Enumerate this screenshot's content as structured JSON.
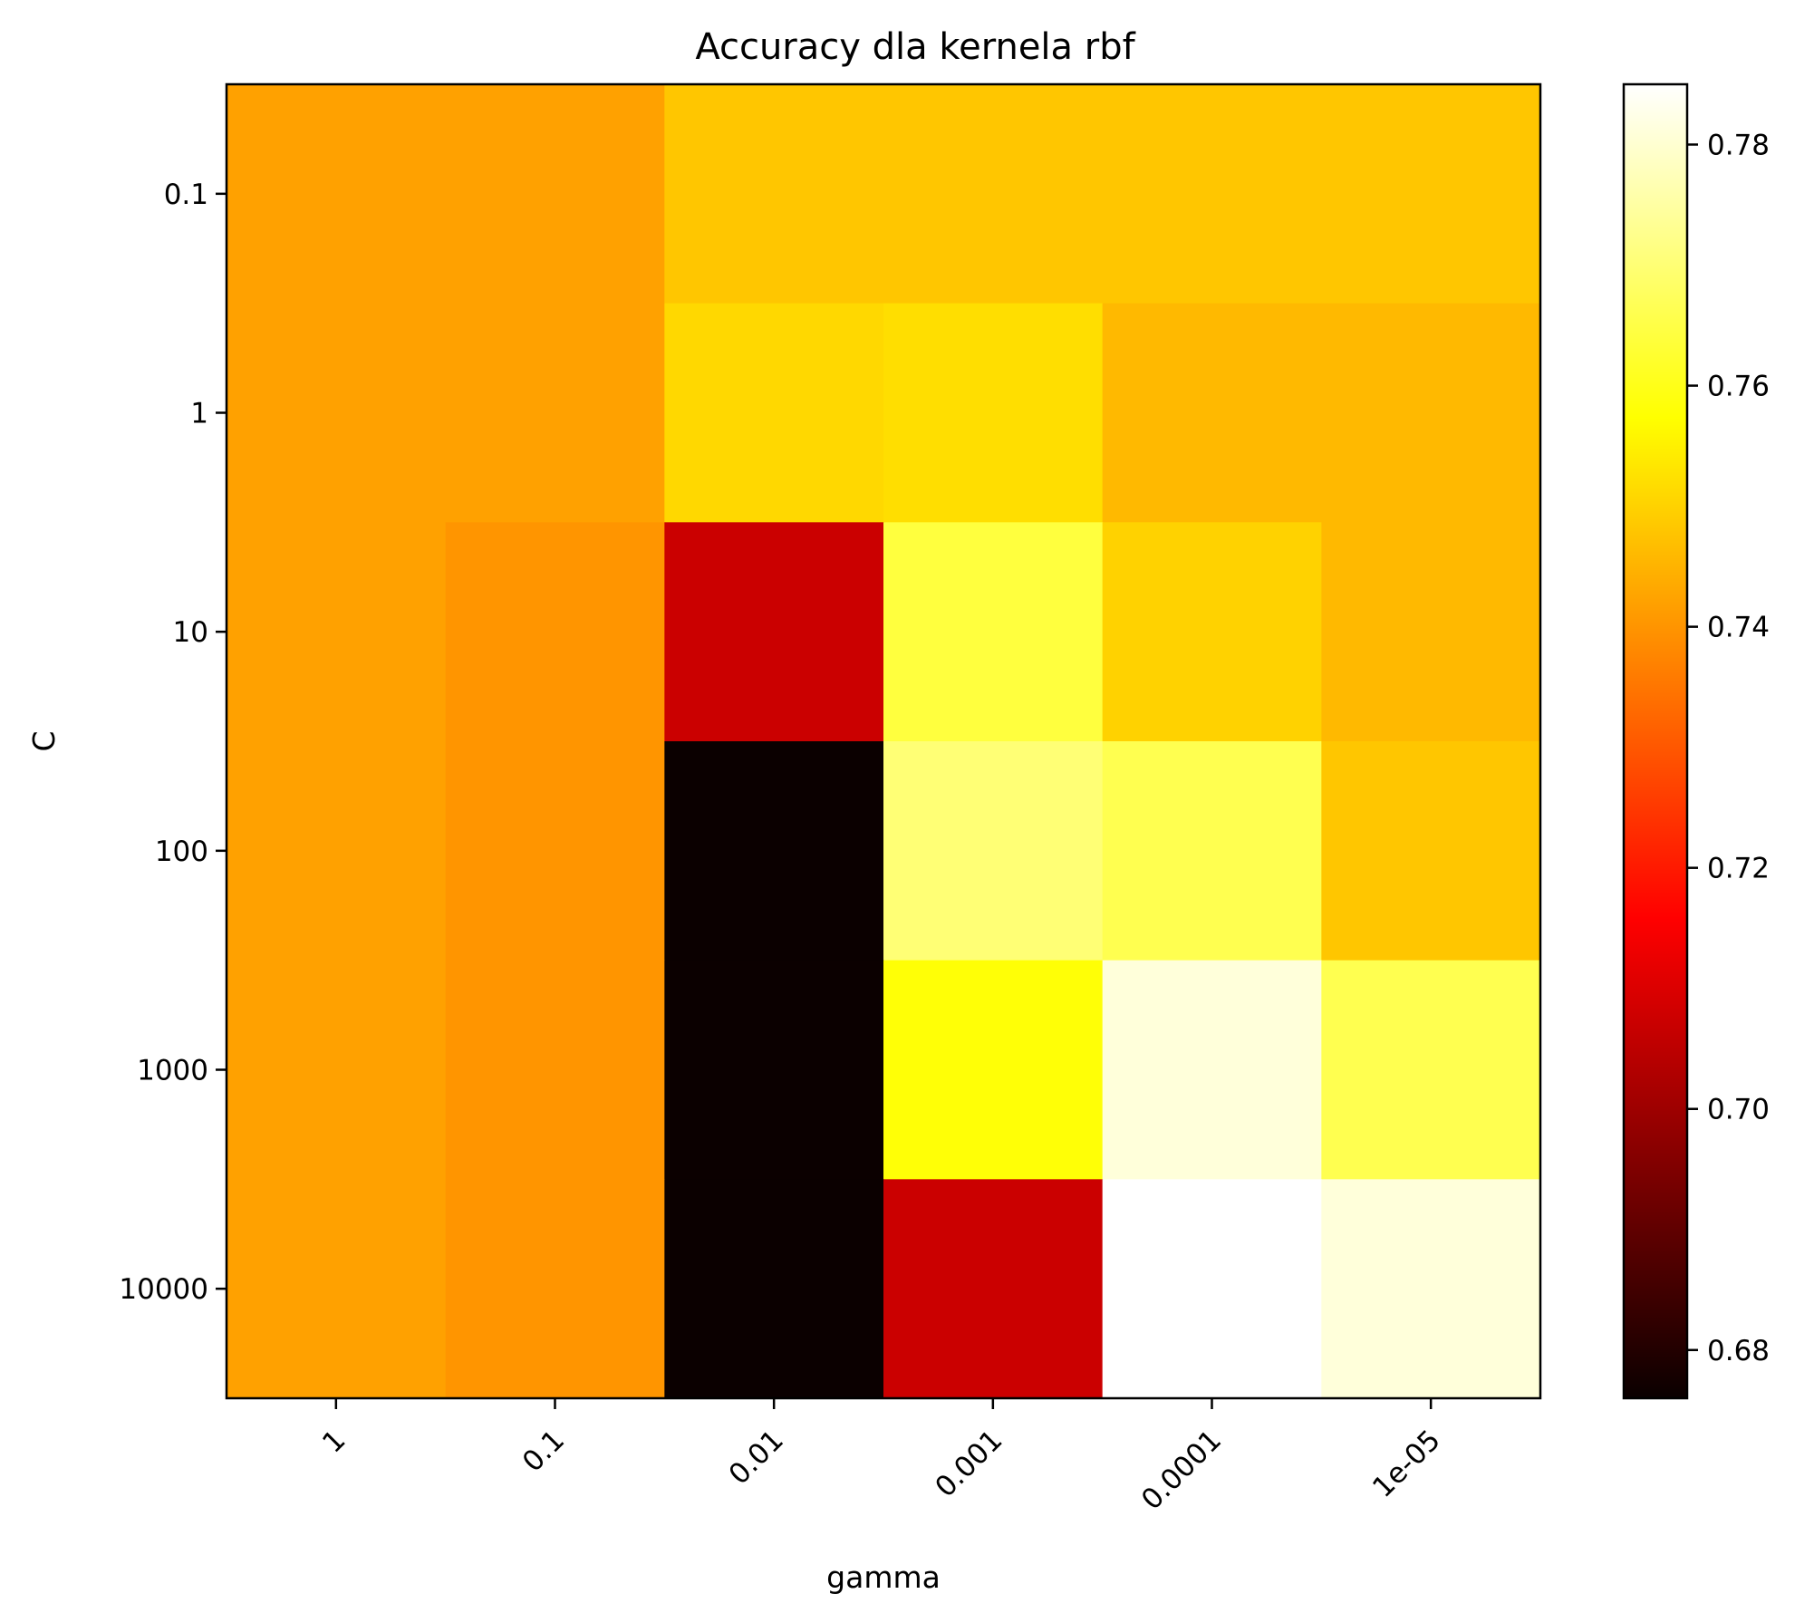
{
  "chart_data": {
    "type": "heatmap",
    "title": "Accuracy dla kernela rbf",
    "xlabel": "gamma",
    "ylabel": "C",
    "x_categories": [
      "1",
      "0.1",
      "0.01",
      "0.001",
      "0.0001",
      "1e-05"
    ],
    "y_categories": [
      "0.1",
      "1",
      "10",
      "100",
      "1000",
      "10000"
    ],
    "values": [
      [
        0.742,
        0.742,
        0.748,
        0.748,
        0.748,
        0.748
      ],
      [
        0.742,
        0.742,
        0.751,
        0.752,
        0.746,
        0.746
      ],
      [
        0.742,
        0.74,
        0.706,
        0.764,
        0.75,
        0.746
      ],
      [
        0.742,
        0.74,
        0.676,
        0.77,
        0.766,
        0.748
      ],
      [
        0.742,
        0.74,
        0.676,
        0.758,
        0.781,
        0.766
      ],
      [
        0.742,
        0.74,
        0.676,
        0.706,
        0.785,
        0.781
      ]
    ],
    "colormap": "hot",
    "colorbar": {
      "min": 0.676,
      "max": 0.785,
      "ticks": [
        "0.68",
        "0.70",
        "0.72",
        "0.74",
        "0.76",
        "0.78"
      ]
    }
  }
}
